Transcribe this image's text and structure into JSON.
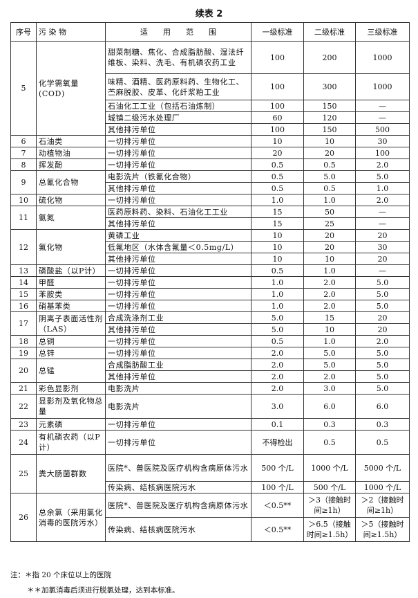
{
  "title": "续表 2",
  "headers": [
    "序号",
    "污 染 物",
    "适　　用　　范　　围",
    "一级标准",
    "二级标准",
    "三级标准"
  ],
  "rows": [
    {
      "no": "5",
      "pollutant": "化学需氧量(COD)",
      "subs": [
        {
          "scope": "甜菜制糖、焦化、合成脂肪酸、湿法纤维板、染料、洗毛、有机磷农药工业",
          "l1": "100",
          "l2": "200",
          "l3": "1000"
        },
        {
          "scope": "味精、酒精、医药原料药、生物化工、苎麻脱胶、皮革、化纤浆粕工业",
          "l1": "100",
          "l2": "300",
          "l3": "1000"
        },
        {
          "scope": "石油化工工业（包括石油炼制）",
          "l1": "100",
          "l2": "150",
          "l3": "—"
        },
        {
          "scope": "城镇二级污水处理厂",
          "l1": "60",
          "l2": "120",
          "l3": "—"
        },
        {
          "scope": "其他排污单位",
          "l1": "100",
          "l2": "150",
          "l3": "500"
        }
      ]
    },
    {
      "no": "6",
      "pollutant": "石油类",
      "subs": [
        {
          "scope": "一切排污单位",
          "l1": "10",
          "l2": "10",
          "l3": "30"
        }
      ]
    },
    {
      "no": "7",
      "pollutant": "动植物油",
      "subs": [
        {
          "scope": "一切排污单位",
          "l1": "20",
          "l2": "20",
          "l3": "100"
        }
      ]
    },
    {
      "no": "8",
      "pollutant": "挥发酚",
      "subs": [
        {
          "scope": "一切排污单位",
          "l1": "0.5",
          "l2": "0.5",
          "l3": "2.0"
        }
      ]
    },
    {
      "no": "9",
      "pollutant": "总氰化合物",
      "subs": [
        {
          "scope": "电影洗片（铁氰化合物）",
          "l1": "0.5",
          "l2": "5.0",
          "l3": "5.0"
        },
        {
          "scope": "其他排污单位",
          "l1": "0.5",
          "l2": "0.5",
          "l3": "1.0"
        }
      ]
    },
    {
      "no": "10",
      "pollutant": "硫化物",
      "subs": [
        {
          "scope": "一切排污单位",
          "l1": "1.0",
          "l2": "1.0",
          "l3": "2.0"
        }
      ]
    },
    {
      "no": "11",
      "pollutant": "氨氮",
      "subs": [
        {
          "scope": "医药原料药、染料、石油化工工业",
          "l1": "15",
          "l2": "50",
          "l3": "—"
        },
        {
          "scope": "其他排污单位",
          "l1": "15",
          "l2": "25",
          "l3": "—"
        }
      ]
    },
    {
      "no": "12",
      "pollutant": "氟化物",
      "subs": [
        {
          "scope": "黄磷工业",
          "l1": "10",
          "l2": "20",
          "l3": "20"
        },
        {
          "scope": "低氟地区（水体含氟量＜0.5mg/L）",
          "l1": "10",
          "l2": "20",
          "l3": "30"
        },
        {
          "scope": "其他排污单位",
          "l1": "10",
          "l2": "10",
          "l3": "20"
        }
      ]
    },
    {
      "no": "13",
      "pollutant": "磷酸盐（以P计）",
      "subs": [
        {
          "scope": "一切排污单位",
          "l1": "0.5",
          "l2": "1.0",
          "l3": "—"
        }
      ]
    },
    {
      "no": "14",
      "pollutant": "甲醛",
      "subs": [
        {
          "scope": "一切排污单位",
          "l1": "1.0",
          "l2": "2.0",
          "l3": "5.0"
        }
      ]
    },
    {
      "no": "15",
      "pollutant": "苯胺类",
      "subs": [
        {
          "scope": "一切排污单位",
          "l1": "1.0",
          "l2": "2.0",
          "l3": "5.0"
        }
      ]
    },
    {
      "no": "16",
      "pollutant": "硝基苯类",
      "subs": [
        {
          "scope": "一切排污单位",
          "l1": "1.0",
          "l2": "2.0",
          "l3": "5.0"
        }
      ]
    },
    {
      "no": "17",
      "pollutant": "阴离子表面活性剂（LAS）",
      "subs": [
        {
          "scope": "合成洗涤剂工业",
          "l1": "5.0",
          "l2": "15",
          "l3": "20"
        },
        {
          "scope": "其他排污单位",
          "l1": "5.0",
          "l2": "10",
          "l3": "20"
        }
      ]
    },
    {
      "no": "18",
      "pollutant": "总铜",
      "subs": [
        {
          "scope": "一切排污单位",
          "l1": "0.5",
          "l2": "1.0",
          "l3": "2.0"
        }
      ]
    },
    {
      "no": "19",
      "pollutant": "总锌",
      "subs": [
        {
          "scope": "一切排污单位",
          "l1": "2.0",
          "l2": "5.0",
          "l3": "5.0"
        }
      ]
    },
    {
      "no": "20",
      "pollutant": "总锰",
      "subs": [
        {
          "scope": "合成脂肪酸工业",
          "l1": "2.0",
          "l2": "5.0",
          "l3": "5.0"
        },
        {
          "scope": "其他排污单位",
          "l1": "2.0",
          "l2": "2.0",
          "l3": "5.0"
        }
      ]
    },
    {
      "no": "21",
      "pollutant": "彩色显影剂",
      "subs": [
        {
          "scope": "电影洗片",
          "l1": "2.0",
          "l2": "3.0",
          "l3": "5.0"
        }
      ]
    },
    {
      "no": "22",
      "pollutant": "显影剂及氧化物总量",
      "subs": [
        {
          "scope": "电影洗片",
          "l1": "3.0",
          "l2": "6.0",
          "l3": "6.0"
        }
      ]
    },
    {
      "no": "23",
      "pollutant": "元素磷",
      "subs": [
        {
          "scope": "一切排污单位",
          "l1": "0.1",
          "l2": "0.3",
          "l3": "0.3"
        }
      ]
    },
    {
      "no": "24",
      "pollutant": "有机磷农药（以P计）",
      "subs": [
        {
          "scope": "一切排污单位",
          "l1": "不得检出",
          "l2": "0.5",
          "l3": "0.5"
        }
      ]
    },
    {
      "no": "25",
      "pollutant": "粪大肠菌群数",
      "subs": [
        {
          "scope": "医院*、兽医院及医疗机构含病原体污水",
          "l1": "500 个/L",
          "l2": "1000 个/L",
          "l3": "5000 个/L"
        },
        {
          "scope": "传染病、结核病医院污水",
          "l1": "100 个/L",
          "l2": "500 个/L",
          "l3": "1000 个/L"
        }
      ]
    },
    {
      "no": "26",
      "pollutant": "总余氯（采用氯化消毒的医院污水）",
      "subs": [
        {
          "scope": "医院*、兽医院及医疗机构含病原体污水",
          "l1": "＜0.5**",
          "l2": "＞3（接触时间≥1h）",
          "l3": "＞2（接触时间≥1h）"
        },
        {
          "scope": "传染病、结核病医院污水",
          "l1": "＜0.5**",
          "l2": "＞6.5（接触时间≥1.5h）",
          "l3": "＞5（接触时间≥1.5h）"
        }
      ]
    }
  ],
  "notes": [
    "注：＊指 20 个床位以上的医院",
    "＊＊加氯消毒后须进行脱氯处理，达到本标准。"
  ]
}
